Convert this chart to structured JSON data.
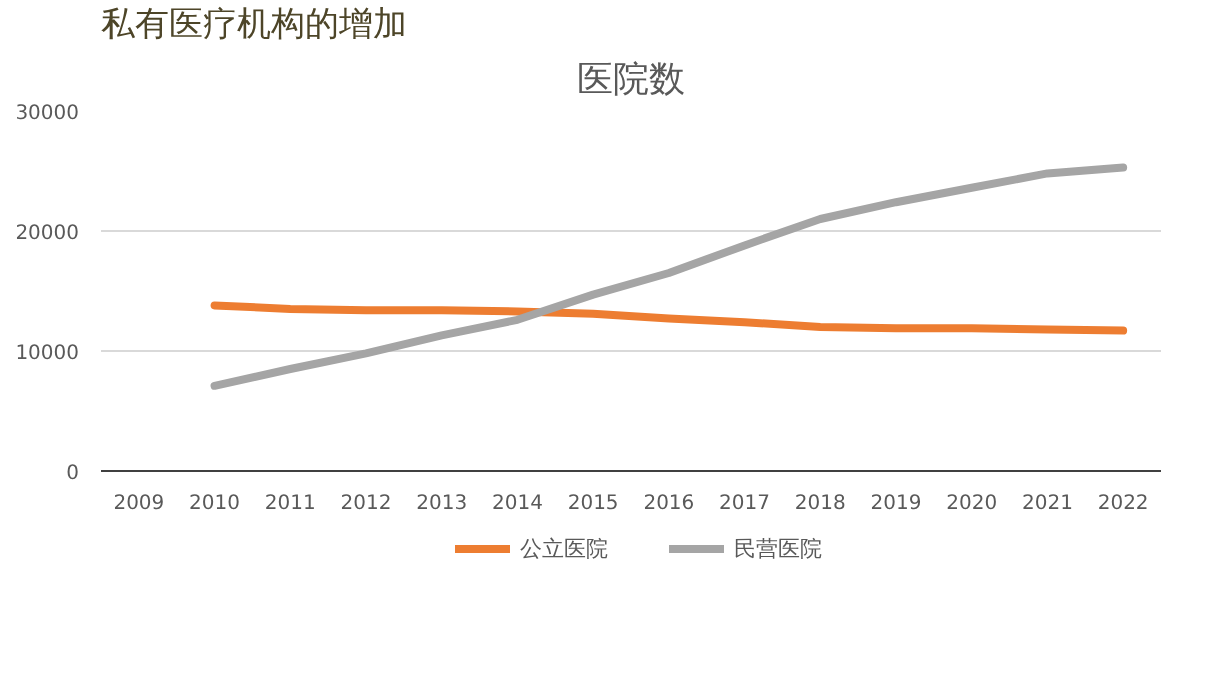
{
  "chart_data": {
    "type": "line",
    "title": "医院数",
    "annotations": [
      "私有医疗机构的增加"
    ],
    "categories": [
      "2009",
      "2010",
      "2011",
      "2012",
      "2013",
      "2014",
      "2015",
      "2016",
      "2017",
      "2018",
      "2019",
      "2020",
      "2021",
      "2022"
    ],
    "series": [
      {
        "name": "公立医院",
        "color": "#ed7d31",
        "values": [
          null,
          13800,
          13500,
          13400,
          13400,
          13300,
          13100,
          12700,
          12400,
          12000,
          11900,
          11900,
          11800,
          11700
        ]
      },
      {
        "name": "民营医院",
        "color": "#a5a5a5",
        "values": [
          null,
          7100,
          8500,
          9800,
          11300,
          12600,
          14700,
          16500,
          18800,
          21000,
          22400,
          23600,
          24800,
          25300
        ]
      }
    ],
    "ylim": [
      0,
      30000
    ],
    "yticks": [
      0,
      10000,
      20000,
      30000
    ],
    "grid": "y",
    "legend": "bottom",
    "marker": "none",
    "line_style": "solid"
  }
}
